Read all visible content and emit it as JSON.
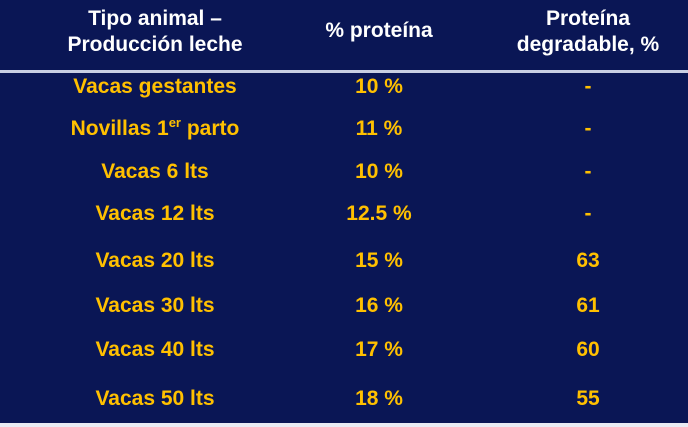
{
  "header": {
    "col1_line1": "Tipo animal –",
    "col1_line2": "Producción leche",
    "col2": "% proteína",
    "col3_line1": "Proteína",
    "col3_line2": "degradable, %"
  },
  "rows": [
    {
      "tipo": "Vacas  gestantes",
      "proteina": "10 %",
      "degradable": "-"
    },
    {
      "tipo_pre": "Novillas 1",
      "tipo_sup": "er",
      "tipo_post": " parto",
      "proteina": "11 %",
      "degradable": "-"
    },
    {
      "tipo": "Vacas  6 lts",
      "proteina": "10 %",
      "degradable": "-"
    },
    {
      "tipo": "Vacas  12 lts",
      "proteina": "12.5 %",
      "degradable": "-"
    },
    {
      "tipo": "Vacas  20 lts",
      "proteina": "15  %",
      "degradable": "63"
    },
    {
      "tipo": "Vacas  30 lts",
      "proteina": "16 %",
      "degradable": "61"
    },
    {
      "tipo": "Vacas  40 lts",
      "proteina": "17 %",
      "degradable": "60"
    },
    {
      "tipo": "Vacas  50 lts",
      "proteina": "18 %",
      "degradable": "55"
    }
  ],
  "colors": {
    "background": "#0a1655",
    "header_text": "#ffffff",
    "body_text": "#ffc000"
  }
}
